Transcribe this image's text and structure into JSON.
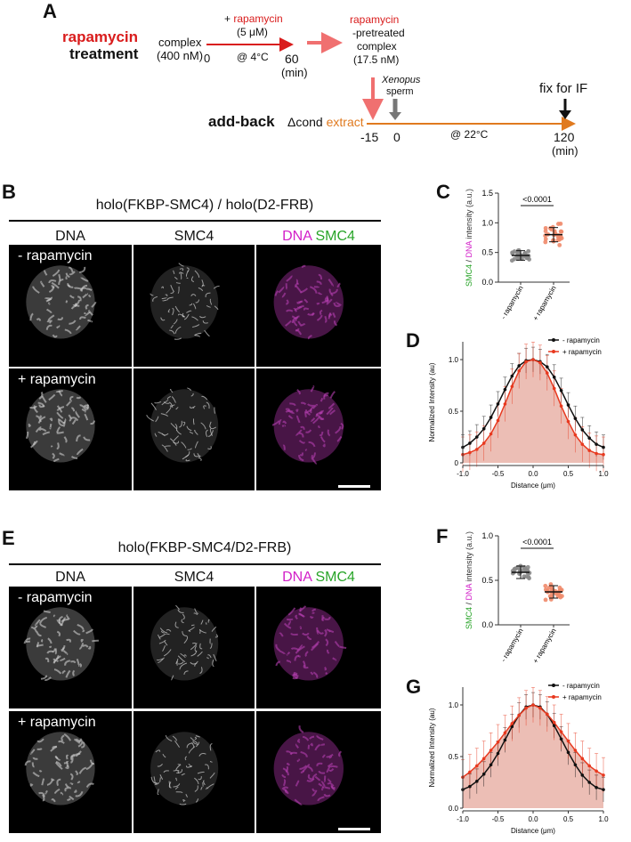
{
  "panelA": {
    "letter": "A",
    "treat1": "rapamycin",
    "treat2": "treatment",
    "complex1": "complex",
    "complex2": "(400 nM)",
    "rapa_plus": "+ ",
    "rapa_word": "rapamycin",
    "rapa_conc": "(5 μM)",
    "temp1": "@ 4°C",
    "t0": "0",
    "t60": "60",
    "tmin1": "(min)",
    "pre1": "rapamycin",
    "pre2": "-pretreated",
    "pre3": "complex",
    "pre4": "(17.5 nM)",
    "xen1": "Xenopus",
    "xen2": "sperm",
    "fix": "fix for IF",
    "addback": "add-back",
    "dcond": "Δcond ",
    "extract": "extract",
    "temp2": "@ 22°C",
    "tm15": "-15",
    "t0b": "0",
    "t120": "120",
    "tmin2": "(min)"
  },
  "panelB": {
    "letter": "B",
    "title": "holo(FKBP-SMC4) / holo(D2-FRB)",
    "col_dna": "DNA",
    "col_smc4": "SMC4",
    "merge_dna": "DNA",
    "merge_smc4": "SMC4",
    "row1": "- rapamycin",
    "row2": "+ rapamycin"
  },
  "panelE": {
    "letter": "E",
    "title": "holo(FKBP-SMC4/D2-FRB)",
    "col_dna": "DNA",
    "col_smc4": "SMC4",
    "merge_dna": "DNA",
    "merge_smc4": "SMC4",
    "row1": "- rapamycin",
    "row2": "+ rapamycin"
  },
  "chart_data": [
    {
      "panel": "C",
      "type": "scatter",
      "ylabel_parts": [
        "SMC4",
        " / ",
        "DNA",
        " intensity (a.u.)"
      ],
      "ylim": [
        0,
        1.5
      ],
      "yticks": [
        "0.0",
        "0.5",
        "1.0",
        "1.5"
      ],
      "categories": [
        "- rapamycin",
        "+ rapamycin"
      ],
      "means": [
        0.45,
        0.8
      ],
      "sd": [
        0.08,
        0.12
      ],
      "significance": "<0.0001",
      "colors": [
        "#888888",
        "#ef8a6a"
      ]
    },
    {
      "panel": "D",
      "type": "line",
      "ylabel": "Normalized Intensity (au)",
      "xlabel": "Distance (μm)",
      "xlim": [
        -1.0,
        1.0
      ],
      "ylim": [
        0,
        1.0
      ],
      "xticks": [
        "-1.0",
        "-0.5",
        "0.0",
        "0.5",
        "1.0"
      ],
      "yticks": [
        "0",
        "0.5",
        "1.0"
      ],
      "x": [
        -1.0,
        -0.9,
        -0.8,
        -0.7,
        -0.6,
        -0.5,
        -0.4,
        -0.3,
        -0.2,
        -0.1,
        0.0,
        0.1,
        0.2,
        0.3,
        0.4,
        0.5,
        0.6,
        0.7,
        0.8,
        0.9,
        1.0
      ],
      "series": [
        {
          "name": "- rapamycin",
          "color": "#111111",
          "values": [
            0.15,
            0.19,
            0.25,
            0.33,
            0.44,
            0.57,
            0.71,
            0.84,
            0.94,
            0.99,
            1.0,
            0.98,
            0.93,
            0.83,
            0.7,
            0.56,
            0.43,
            0.32,
            0.24,
            0.18,
            0.15
          ]
        },
        {
          "name": "+ rapamycin",
          "color": "#e8391f",
          "values": [
            0.08,
            0.1,
            0.13,
            0.19,
            0.28,
            0.41,
            0.57,
            0.74,
            0.89,
            0.98,
            1.0,
            0.97,
            0.87,
            0.72,
            0.55,
            0.4,
            0.27,
            0.18,
            0.12,
            0.09,
            0.08
          ]
        }
      ]
    },
    {
      "panel": "F",
      "type": "scatter",
      "ylabel_parts": [
        "SMC4",
        " / ",
        "DNA",
        " intensity (a.u.)"
      ],
      "ylim": [
        0,
        1.0
      ],
      "yticks": [
        "0.0",
        "0.5",
        "1.0"
      ],
      "categories": [
        "- rapamycin",
        "+ rapamycin"
      ],
      "means": [
        0.59,
        0.37
      ],
      "sd": [
        0.07,
        0.07
      ],
      "significance": "<0.0001",
      "colors": [
        "#888888",
        "#ef8a6a"
      ]
    },
    {
      "panel": "G",
      "type": "line",
      "ylabel": "Normalized Intensity (au)",
      "xlabel": "Distance (μm)",
      "xlim": [
        -1.0,
        1.0
      ],
      "ylim": [
        0,
        1.0
      ],
      "xticks": [
        "-1.0",
        "-0.5",
        "0.0",
        "0.5",
        "1.0"
      ],
      "yticks": [
        "0.0",
        "0.5",
        "1.0"
      ],
      "x": [
        -1.0,
        -0.9,
        -0.8,
        -0.7,
        -0.6,
        -0.5,
        -0.4,
        -0.3,
        -0.2,
        -0.1,
        0.0,
        0.1,
        0.2,
        0.3,
        0.4,
        0.5,
        0.6,
        0.7,
        0.8,
        0.9,
        1.0
      ],
      "series": [
        {
          "name": "- rapamycin",
          "color": "#111111",
          "values": [
            0.18,
            0.21,
            0.26,
            0.33,
            0.42,
            0.53,
            0.66,
            0.79,
            0.9,
            0.98,
            1.0,
            0.98,
            0.91,
            0.8,
            0.67,
            0.54,
            0.42,
            0.32,
            0.25,
            0.2,
            0.18
          ]
        },
        {
          "name": "+ rapamycin",
          "color": "#e8391f",
          "values": [
            0.3,
            0.35,
            0.41,
            0.48,
            0.56,
            0.64,
            0.73,
            0.82,
            0.9,
            0.97,
            1.0,
            0.97,
            0.91,
            0.83,
            0.74,
            0.65,
            0.56,
            0.48,
            0.41,
            0.36,
            0.32
          ]
        }
      ]
    }
  ]
}
